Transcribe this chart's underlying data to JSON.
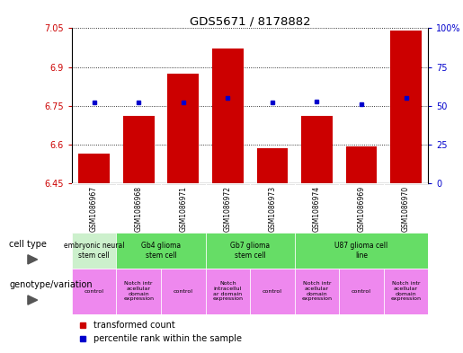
{
  "title": "GDS5671 / 8178882",
  "samples": [
    "GSM1086967",
    "GSM1086968",
    "GSM1086971",
    "GSM1086972",
    "GSM1086973",
    "GSM1086974",
    "GSM1086969",
    "GSM1086970"
  ],
  "transformed_counts": [
    6.565,
    6.71,
    6.875,
    6.97,
    6.585,
    6.71,
    6.595,
    7.04
  ],
  "percentile_ranks": [
    52,
    52,
    52,
    55,
    52,
    53,
    51,
    55
  ],
  "ylim_left": [
    6.45,
    7.05
  ],
  "ylim_right": [
    0,
    100
  ],
  "yticks_left": [
    6.45,
    6.6,
    6.75,
    6.9,
    7.05
  ],
  "yticks_right": [
    0,
    25,
    50,
    75,
    100
  ],
  "ytick_labels_left": [
    "6.45",
    "6.6",
    "6.75",
    "6.9",
    "7.05"
  ],
  "ytick_labels_right": [
    "0",
    "25",
    "50",
    "75",
    "100%"
  ],
  "bar_color": "#cc0000",
  "dot_color": "#0000cc",
  "bg_color": "#ffffff",
  "cell_type_info": [
    {
      "start": 0,
      "end": 0,
      "label": "embryonic neural\nstem cell",
      "color": "#ccf0cc"
    },
    {
      "start": 1,
      "end": 2,
      "label": "Gb4 glioma\nstem cell",
      "color": "#66dd66"
    },
    {
      "start": 3,
      "end": 4,
      "label": "Gb7 glioma\nstem cell",
      "color": "#66dd66"
    },
    {
      "start": 5,
      "end": 7,
      "label": "U87 glioma cell\nline",
      "color": "#66dd66"
    }
  ],
  "geno_info": [
    {
      "idx": 0,
      "label": "control",
      "color": "#ee88ee"
    },
    {
      "idx": 1,
      "label": "Notch intr\nacellular\ndomain\nexpression",
      "color": "#ee88ee"
    },
    {
      "idx": 2,
      "label": "control",
      "color": "#ee88ee"
    },
    {
      "idx": 3,
      "label": "Notch\nintracellul\nar domain\nexpression",
      "color": "#ee88ee"
    },
    {
      "idx": 4,
      "label": "control",
      "color": "#ee88ee"
    },
    {
      "idx": 5,
      "label": "Notch intr\nacellular\ndomain\nexpression",
      "color": "#ee88ee"
    },
    {
      "idx": 6,
      "label": "control",
      "color": "#ee88ee"
    },
    {
      "idx": 7,
      "label": "Notch intr\nacellular\ndomain\nexpression",
      "color": "#ee88ee"
    }
  ],
  "sample_bg_color": "#c8c8c8",
  "legend_bar_label": "transformed count",
  "legend_dot_label": "percentile rank within the sample",
  "cell_type_label": "cell type",
  "genotype_label": "genotype/variation"
}
